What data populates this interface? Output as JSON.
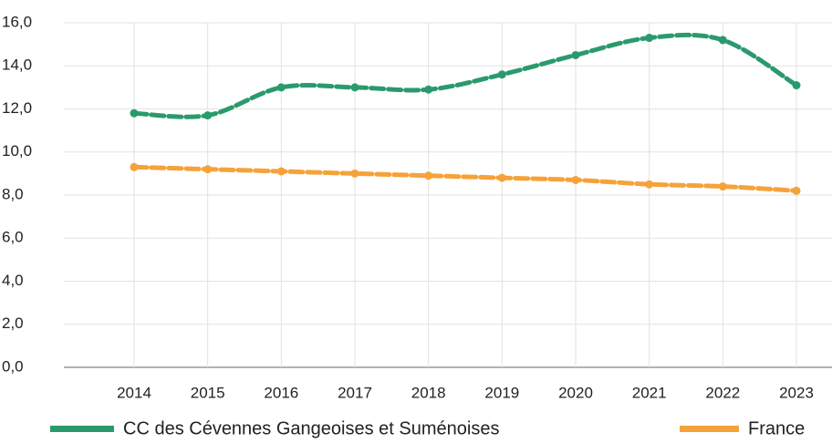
{
  "chart_data": {
    "type": "line",
    "categories": [
      "2014",
      "2015",
      "2016",
      "2017",
      "2018",
      "2019",
      "2020",
      "2021",
      "2022",
      "2023"
    ],
    "series": [
      {
        "name": "CC des Cévennes Gangeoises et Suménoises",
        "color": "#2a9a6e",
        "values": [
          11.8,
          11.7,
          13.0,
          13.0,
          12.9,
          13.6,
          14.5,
          15.3,
          15.2,
          13.1
        ]
      },
      {
        "name": "France",
        "color": "#f5a23a",
        "values": [
          9.3,
          9.2,
          9.1,
          9.0,
          8.9,
          8.8,
          8.7,
          8.5,
          8.4,
          8.2
        ]
      }
    ],
    "ylim": [
      0,
      16
    ],
    "yticks": [
      {
        "value": 0,
        "label": "0,0"
      },
      {
        "value": 2,
        "label": "2,0"
      },
      {
        "value": 4,
        "label": "4,0"
      },
      {
        "value": 6,
        "label": "6,0"
      },
      {
        "value": 8,
        "label": "8,0"
      },
      {
        "value": 10,
        "label": "10,0"
      },
      {
        "value": 12,
        "label": "12,0"
      },
      {
        "value": 14,
        "label": "14,0"
      },
      {
        "value": 16,
        "label": "16,0"
      }
    ],
    "grid": true
  }
}
